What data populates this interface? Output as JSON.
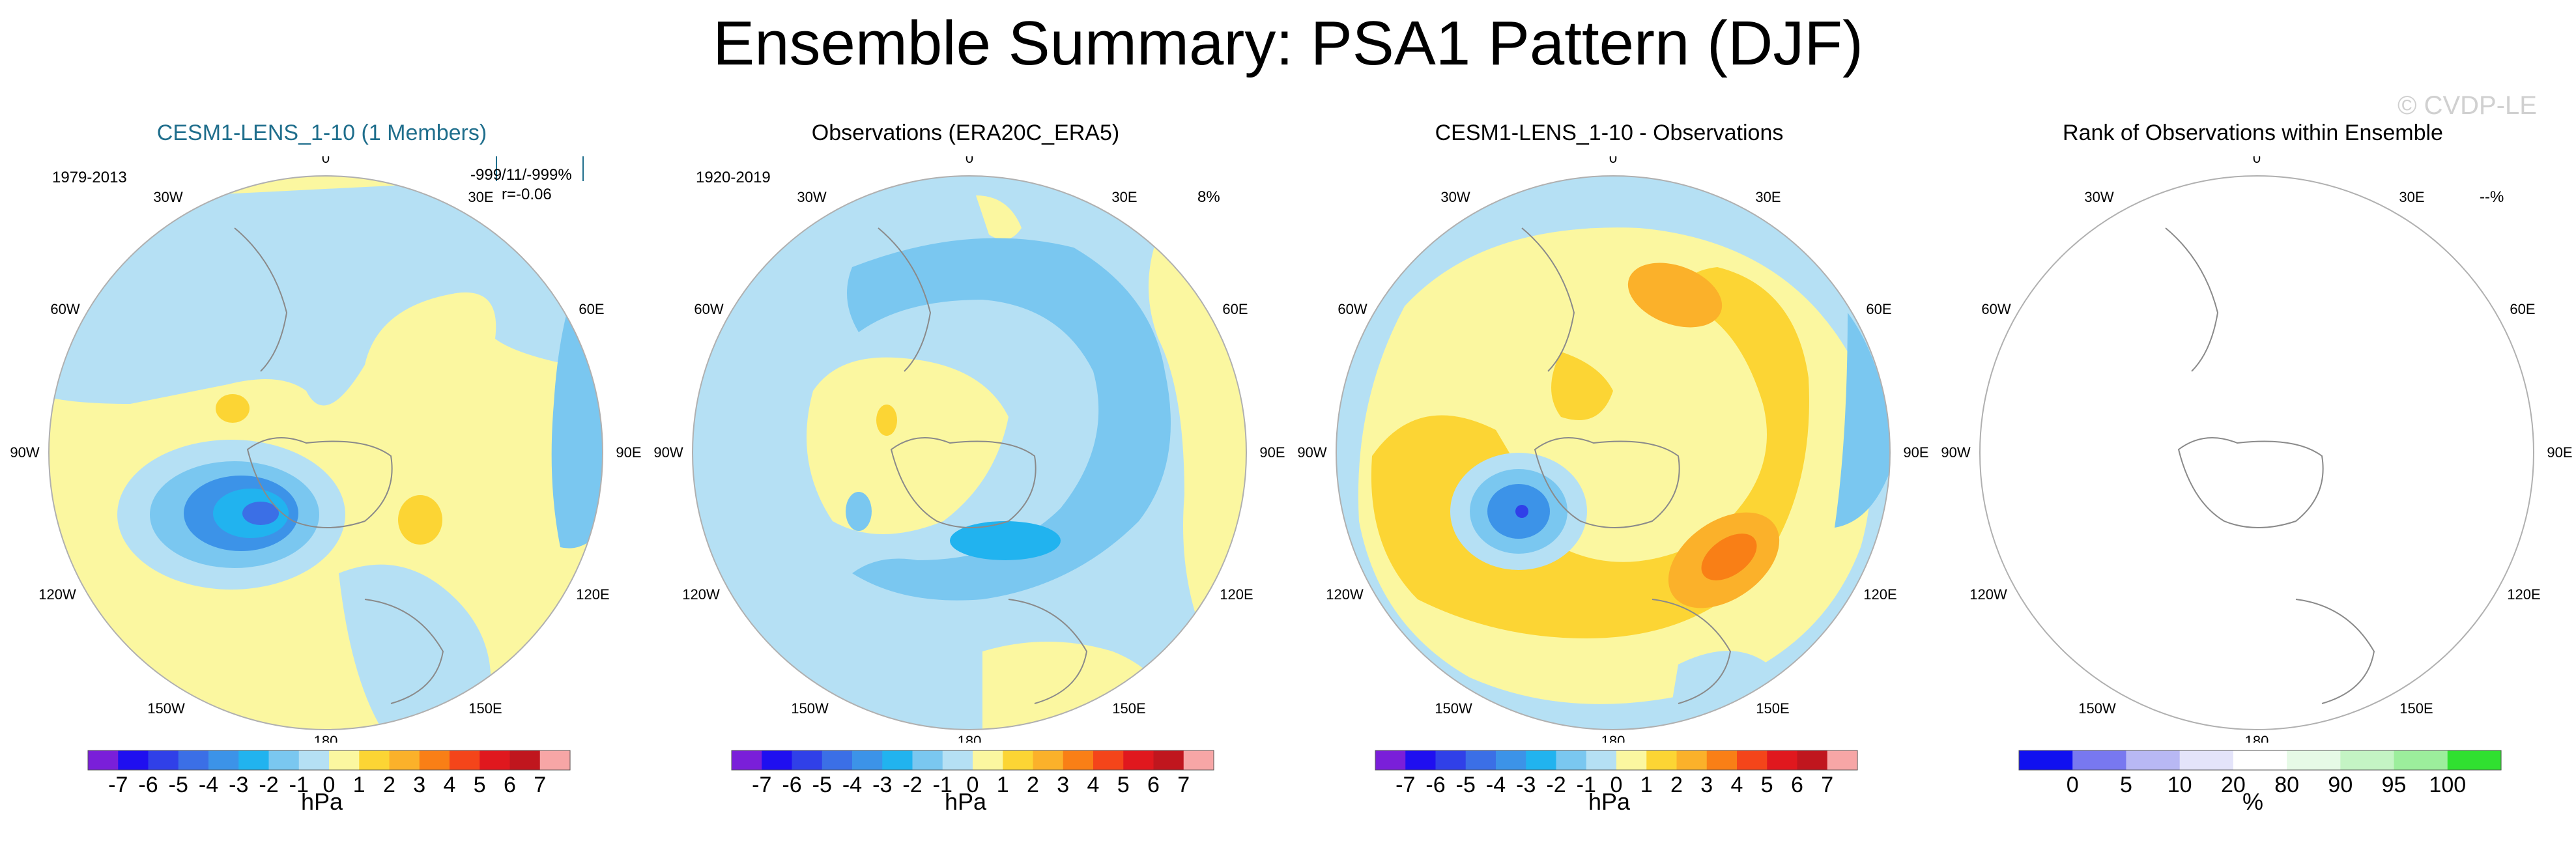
{
  "title": "Ensemble Summary: PSA1 Pattern (DJF)",
  "watermark": "© CVDP-LE",
  "longitude_labels": {
    "lon_0": "0",
    "lon_30e": "30E",
    "lon_60e": "60E",
    "lon_90e": "90E",
    "lon_120e": "120E",
    "lon_150e": "150E",
    "lon_180": "180",
    "lon_150w": "150W",
    "lon_120w": "120W",
    "lon_90w": "90W",
    "lon_60w": "60W",
    "lon_30w": "30W"
  },
  "palettes": {
    "anomaly": [
      "#7a1fd9",
      "#1f0ff0",
      "#3040e8",
      "#3b6fe6",
      "#3c93e8",
      "#21b3ef",
      "#7ac7f0",
      "#b5e0f4",
      "#fbf7a0",
      "#fcd534",
      "#fbb12a",
      "#f97f16",
      "#f4451a",
      "#e0181e",
      "#c0161e",
      "#f7a6a6"
    ],
    "rank": [
      "#1010f0",
      "#7878f0",
      "#b8b8f4",
      "#e4e4fa",
      "#ffffff",
      "#e6fae6",
      "#c4f4c4",
      "#9cee9c",
      "#30e030"
    ]
  },
  "panels": [
    {
      "title": "CESM1-LENS_1-10 (1 Members)",
      "years": "1979-2013",
      "stat_line1": "-999/11/-999%",
      "stat_line2": "r=-0.06",
      "colorbar_labels": [
        "-7",
        "-6",
        "-5",
        "-4",
        "-3",
        "-2",
        "-1",
        "0",
        "1",
        "2",
        "3",
        "4",
        "5",
        "6",
        "7"
      ],
      "units": "hPa"
    },
    {
      "title": "Observations (ERA20C_ERA5)",
      "years": "1920-2019",
      "percent": "8%",
      "colorbar_labels": [
        "-7",
        "-6",
        "-5",
        "-4",
        "-3",
        "-2",
        "-1",
        "0",
        "1",
        "2",
        "3",
        "4",
        "5",
        "6",
        "7"
      ],
      "units": "hPa"
    },
    {
      "title": "CESM1-LENS_1-10 - Observations",
      "colorbar_labels": [
        "-7",
        "-6",
        "-5",
        "-4",
        "-3",
        "-2",
        "-1",
        "0",
        "1",
        "2",
        "3",
        "4",
        "5",
        "6",
        "7"
      ],
      "units": "hPa"
    },
    {
      "title": "Rank of Observations within Ensemble",
      "percent": "--%",
      "colorbar_labels": [
        "0",
        "5",
        "10",
        "20",
        "80",
        "90",
        "95",
        "100"
      ],
      "units": "%"
    }
  ]
}
